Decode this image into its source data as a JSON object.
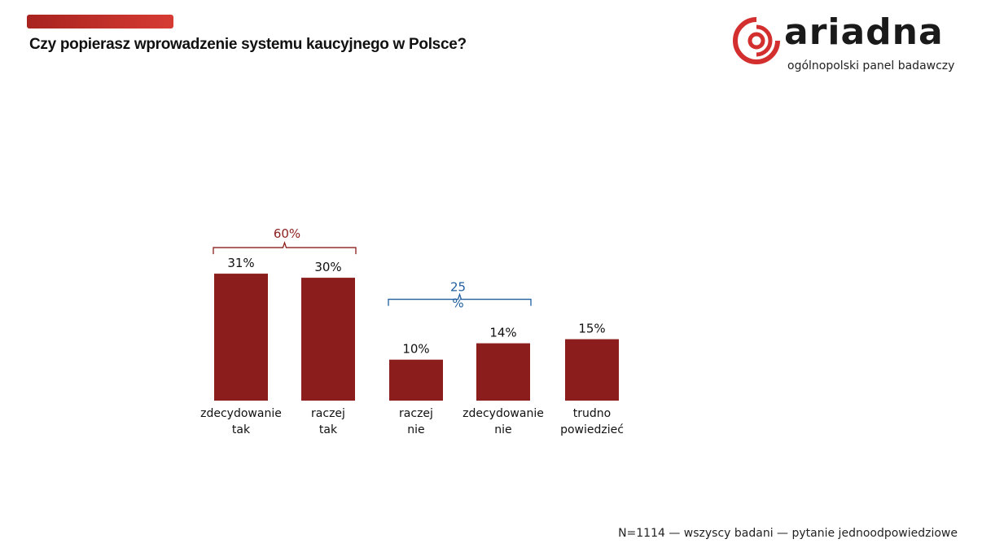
{
  "header": {
    "title": "Czy popierasz wprowadzenie systemu kaucyjnego w Polsce?"
  },
  "logo": {
    "name": "ariadna",
    "tagline": "ogólnopolski panel badawczy",
    "brand_color": "#d32f2f"
  },
  "footer": {
    "note": "N=1114 — wszyscy badani — pytanie jednoodpowiedziowe"
  },
  "chart_data": {
    "type": "bar",
    "title": "Czy popierasz wprowadzenie systemu kaucyjnego w Polsce?",
    "categories": [
      [
        "zdecydowanie",
        "tak"
      ],
      [
        "raczej",
        "tak"
      ],
      [
        "raczej",
        "nie"
      ],
      [
        "zdecydowanie",
        "nie"
      ],
      [
        "trudno",
        "powiedzieć"
      ]
    ],
    "values": [
      31,
      30,
      10,
      14,
      15
    ],
    "value_labels": [
      "31%",
      "30%",
      "10%",
      "14%",
      "15%"
    ],
    "ylim": [
      0,
      35
    ],
    "grid": false,
    "bar_color": "#8b1e1c",
    "groups": [
      {
        "label": "60%",
        "members": [
          0,
          1
        ],
        "color": "#8b1e1c"
      },
      {
        "label_lines": [
          "25",
          "%"
        ],
        "members": [
          2,
          3
        ],
        "color": "#1f5fa0"
      }
    ]
  }
}
